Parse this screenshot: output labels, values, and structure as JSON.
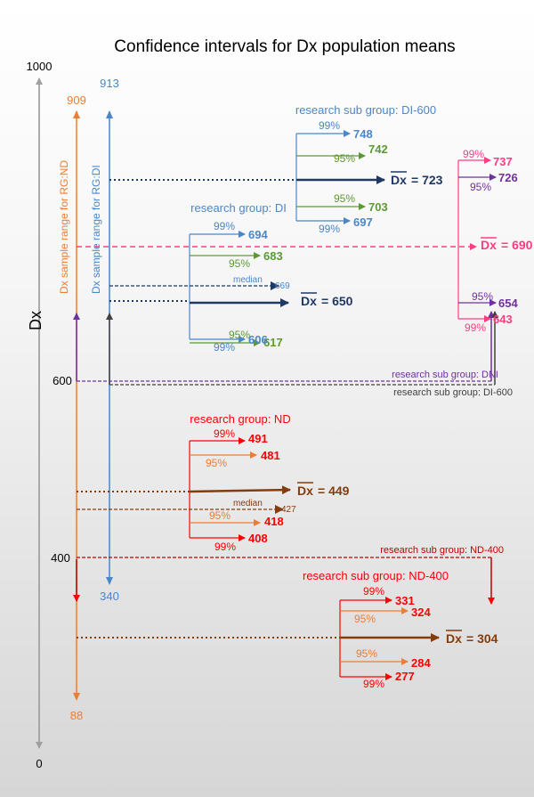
{
  "title": "Confidence intervals for Dx population means",
  "colors": {
    "blue": "#4a86c8",
    "navy": "#1f3864",
    "green": "#5b9a33",
    "orange": "#ed7d31",
    "red": "#ff0000",
    "brown": "#843c0c",
    "pink": "#ff3c82",
    "purple": "#7030a0",
    "gray": "#a0a0a0",
    "darkgray": "#404040"
  },
  "axis": {
    "label": "Dx",
    "ticks": [
      "1000",
      "600",
      "400",
      "0"
    ]
  },
  "ranges": {
    "nd": {
      "label": "Dx  sample range for RG:ND",
      "max": "909",
      "min": "88"
    },
    "di": {
      "label": "Dx  sample range for RG:DI",
      "max": "913",
      "min": "340"
    }
  },
  "groups": {
    "di600": {
      "title": "research sub group: DI-600",
      "rows": [
        {
          "pct": "99%",
          "value": "748",
          "color": "blue"
        },
        {
          "pct": "95%",
          "value": "742",
          "color": "green"
        },
        {
          "pct": "",
          "mean_label": "Dx",
          "value": "= 723",
          "color": "navy"
        },
        {
          "pct": "95%",
          "value": "703",
          "color": "green"
        },
        {
          "pct": "99%",
          "value": "697",
          "color": "blue"
        }
      ]
    },
    "di": {
      "title": "research group: DI",
      "median_label": "median",
      "median_value": "669",
      "rows": [
        {
          "pct": "99%",
          "value": "694",
          "color": "blue"
        },
        {
          "pct": "95%",
          "value": "683",
          "color": "green"
        },
        {
          "pct": "",
          "mean_label": "Dx",
          "value": "= 650",
          "color": "navy"
        },
        {
          "pct": "95%",
          "value": "617",
          "color": "green"
        },
        {
          "pct": "99%",
          "value": "606",
          "color": "blue"
        }
      ]
    },
    "dni": {
      "title": "research sub group: DNI",
      "rows": [
        {
          "pct": "99%",
          "value": "737",
          "color": "pink"
        },
        {
          "pct": "95%",
          "value": "726",
          "color": "purple"
        },
        {
          "pct": "",
          "mean_label": "Dx",
          "value": "= 690",
          "color": "pink"
        },
        {
          "pct": "95%",
          "value": "654",
          "color": "purple"
        },
        {
          "pct": "99%",
          "value": "643",
          "color": "pink"
        }
      ]
    },
    "di600_bottom_label": "research sub group:  DI-600",
    "nd": {
      "title": "research group: ND",
      "median_label": "median",
      "median_value": "427",
      "rows": [
        {
          "pct": "99%",
          "value": "491",
          "color": "red"
        },
        {
          "pct": "95%",
          "value": "481",
          "color": "orange"
        },
        {
          "pct": "",
          "mean_label": "Dx",
          "value": "= 449",
          "color": "brown"
        },
        {
          "pct": "95%",
          "value": "418",
          "color": "orange"
        },
        {
          "pct": "99%",
          "value": "408",
          "color": "red"
        }
      ]
    },
    "nd400": {
      "title": "research sub group: ND-400",
      "top_label": "research sub group: ND-400",
      "rows": [
        {
          "pct": "99%",
          "value": "331",
          "color": "red"
        },
        {
          "pct": "95%",
          "value": "324",
          "color": "orange"
        },
        {
          "pct": "",
          "mean_label": "Dx",
          "value": "= 304",
          "color": "brown"
        },
        {
          "pct": "95%",
          "value": "284",
          "color": "orange"
        },
        {
          "pct": "99%",
          "value": "277",
          "color": "red"
        }
      ]
    }
  }
}
